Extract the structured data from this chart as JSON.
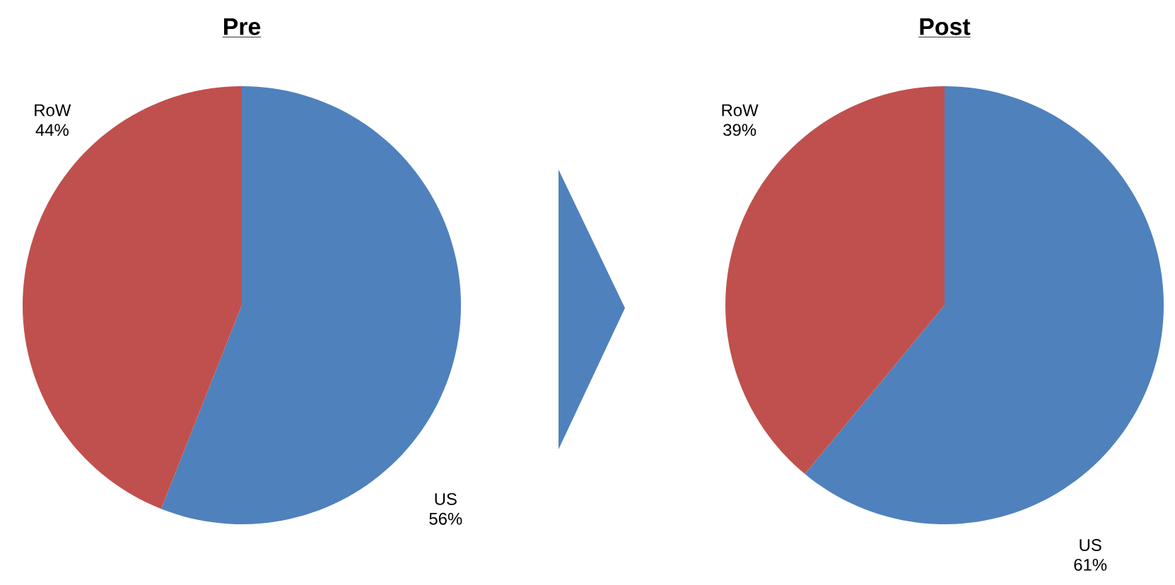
{
  "chart_data": [
    {
      "type": "pie",
      "title": "Pre",
      "categories": [
        "US",
        "RoW"
      ],
      "values": [
        56,
        44
      ],
      "colors": [
        "#4f81bd",
        "#c0504d"
      ],
      "value_labels": [
        "56%",
        "44%"
      ]
    },
    {
      "type": "pie",
      "title": "Post",
      "categories": [
        "US",
        "RoW"
      ],
      "values": [
        61,
        39
      ],
      "colors": [
        "#4f81bd",
        "#c0504d"
      ],
      "value_labels": [
        "61%",
        "39%"
      ]
    }
  ]
}
